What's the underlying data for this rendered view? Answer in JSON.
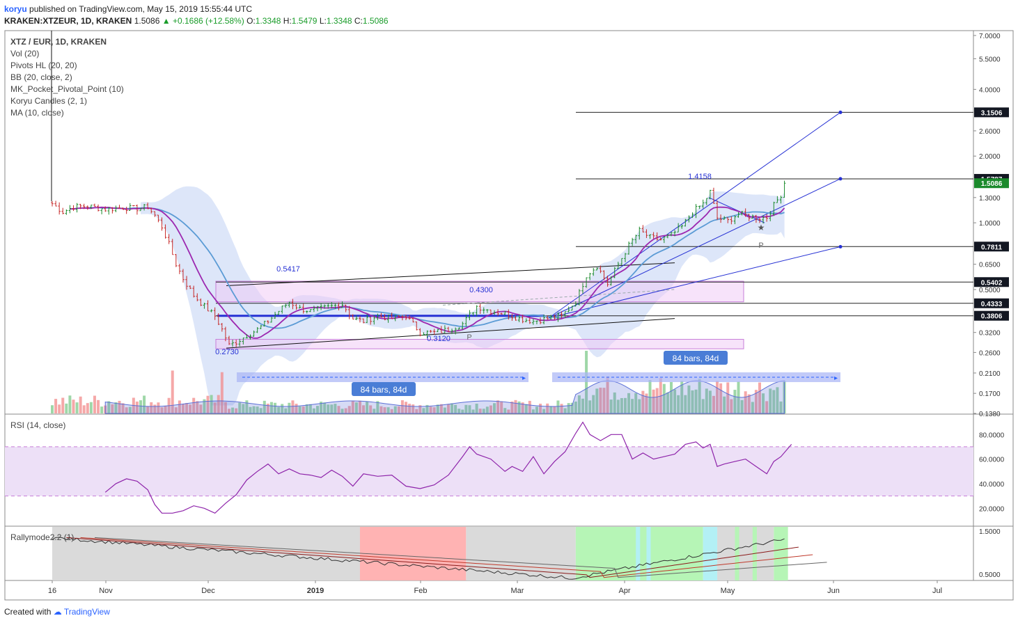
{
  "header": {
    "author": "koryu",
    "published": "published on TradingView.com, May 15, 2019 15:55:44 UTC",
    "symbol": "KRAKEN:XTZEUR, 1D, KRAKEN",
    "last": "1.5086",
    "change": "+0.1686 (+12.58%)",
    "o_label": "O:",
    "o": "1.3348",
    "h_label": "H:",
    "h": "1.5479",
    "l_label": "L:",
    "l": "1.3348",
    "c_label": "C:",
    "c": "1.5086"
  },
  "legend": [
    "XTZ / EUR, 1D, KRAKEN",
    "Vol (20)",
    "Pivots HL (20, 20)",
    "BB (20, close, 2)",
    "MK_Pocket_Pivotal_Point (10)",
    "Koryu Candles (2, 1)",
    "MA (10, close)"
  ],
  "colors": {
    "up": "#26a69a",
    "down": "#ef5350",
    "ma": "#9c27b0",
    "bb": "#5b9bd5",
    "bbfill": "#cfdcf7",
    "band": "#f0c8f5",
    "trend": "#2631d4",
    "rsi": "#8e24aa",
    "rsiband": "#ede0f7",
    "rally_gray": "#dadada",
    "rally_red": "#ffb3b3",
    "rally_green": "#b6f5b6",
    "rally_cyan": "#b3f0f5"
  },
  "footer": {
    "created": "Created with",
    "brand": "TradingView"
  },
  "chart_data": [
    {
      "type": "candlestick",
      "title": "XTZ / EUR, 1D, KRAKEN",
      "scale": "log",
      "ylim": [
        0.138,
        7.0
      ],
      "y_ticks": [
        "7.0000",
        "5.5000",
        "4.0000",
        "3.1506",
        "2.6000",
        "2.0000",
        "1.5787",
        "1.5086",
        "1.3000",
        "1.0000",
        "0.7811",
        "0.6500",
        "0.5402",
        "0.5000",
        "0.4333",
        "0.3806",
        "0.3200",
        "0.2600",
        "0.2100",
        "0.1700",
        "0.1380"
      ],
      "x_ticks": [
        "16",
        "Nov",
        "Dec",
        "2019",
        "Feb",
        "Mar",
        "Apr",
        "May",
        "Jun",
        "Jul"
      ],
      "horizontal_levels": [
        {
          "label": "3.1506",
          "value": 3.1506
        },
        {
          "label": "1.5787",
          "value": 1.5787
        },
        {
          "label": "0.7811",
          "value": 0.7811
        },
        {
          "label": "0.5402",
          "value": 0.5402
        },
        {
          "label": "0.4333",
          "value": 0.4333
        },
        {
          "label": "0.3806",
          "value": 0.3806
        }
      ],
      "last_price": {
        "label": "1.5086",
        "value": 1.5086
      },
      "annotations": [
        {
          "text": "0.5417",
          "value": 0.5417
        },
        {
          "text": "0.4300",
          "value": 0.43
        },
        {
          "text": "0.3120",
          "value": 0.312
        },
        {
          "text": "0.2730",
          "value": 0.273
        },
        {
          "text": "1.4158",
          "value": 1.4158
        },
        {
          "text": "P",
          "value": 0.3
        },
        {
          "text": "P",
          "value": 0.86
        }
      ],
      "ranges": [
        {
          "text": "84 bars, 84d",
          "placement": "bottom-left"
        },
        {
          "text": "84 bars, 84d",
          "placement": "top-right"
        }
      ],
      "close_path": [
        [
          0,
          1.22
        ],
        [
          3,
          1.12
        ],
        [
          6,
          1.18
        ],
        [
          10,
          1.19
        ],
        [
          15,
          1.15
        ],
        [
          20,
          1.17
        ],
        [
          24,
          1.16
        ],
        [
          27,
          1.18
        ],
        [
          29,
          1.08
        ],
        [
          31,
          0.96
        ],
        [
          33,
          0.8
        ],
        [
          35,
          0.65
        ],
        [
          37,
          0.56
        ],
        [
          40,
          0.47
        ],
        [
          43,
          0.42
        ],
        [
          46,
          0.38
        ],
        [
          48,
          0.33
        ],
        [
          50,
          0.28
        ],
        [
          52,
          0.29
        ],
        [
          55,
          0.31
        ],
        [
          58,
          0.33
        ],
        [
          61,
          0.36
        ],
        [
          64,
          0.4
        ],
        [
          67,
          0.44
        ],
        [
          70,
          0.41
        ],
        [
          73,
          0.4
        ],
        [
          76,
          0.41
        ],
        [
          79,
          0.42
        ],
        [
          82,
          0.43
        ],
        [
          85,
          0.37
        ],
        [
          88,
          0.36
        ],
        [
          92,
          0.38
        ],
        [
          96,
          0.37
        ],
        [
          100,
          0.38
        ],
        [
          104,
          0.32
        ],
        [
          108,
          0.32
        ],
        [
          112,
          0.33
        ],
        [
          116,
          0.35
        ],
        [
          120,
          0.42
        ],
        [
          124,
          0.4
        ],
        [
          128,
          0.39
        ],
        [
          132,
          0.37
        ],
        [
          136,
          0.36
        ],
        [
          140,
          0.37
        ],
        [
          144,
          0.38
        ],
        [
          148,
          0.44
        ],
        [
          151,
          0.58
        ],
        [
          154,
          0.64
        ],
        [
          157,
          0.53
        ],
        [
          160,
          0.65
        ],
        [
          163,
          0.79
        ],
        [
          166,
          0.92
        ],
        [
          169,
          0.86
        ],
        [
          172,
          0.84
        ],
        [
          175,
          0.88
        ],
        [
          178,
          0.96
        ],
        [
          181,
          1.12
        ],
        [
          184,
          1.22
        ],
        [
          186,
          1.38
        ],
        [
          188,
          1.05
        ],
        [
          191,
          1.02
        ],
        [
          194,
          1.1
        ],
        [
          197,
          1.07
        ],
        [
          200,
          1.05
        ],
        [
          202,
          1.06
        ],
        [
          204,
          1.2
        ],
        [
          206,
          1.34
        ],
        [
          207,
          1.51
        ]
      ]
    },
    {
      "type": "line",
      "title": "RSI (14, close)",
      "ylim": [
        6,
        96
      ],
      "y_ticks": [
        "80.0000",
        "60.0000",
        "40.0000",
        "20.0000"
      ],
      "band": [
        30,
        70
      ],
      "values": [
        [
          15,
          33
        ],
        [
          18,
          40
        ],
        [
          21,
          44
        ],
        [
          24,
          42
        ],
        [
          27,
          35
        ],
        [
          29,
          23
        ],
        [
          31,
          16
        ],
        [
          34,
          16
        ],
        [
          37,
          18
        ],
        [
          40,
          22
        ],
        [
          43,
          20
        ],
        [
          46,
          16
        ],
        [
          49,
          24
        ],
        [
          52,
          31
        ],
        [
          55,
          43
        ],
        [
          58,
          50
        ],
        [
          61,
          56
        ],
        [
          64,
          48
        ],
        [
          67,
          52
        ],
        [
          70,
          48
        ],
        [
          73,
          47
        ],
        [
          76,
          45
        ],
        [
          79,
          51
        ],
        [
          82,
          46
        ],
        [
          85,
          38
        ],
        [
          88,
          48
        ],
        [
          92,
          46
        ],
        [
          96,
          47
        ],
        [
          100,
          38
        ],
        [
          104,
          36
        ],
        [
          108,
          39
        ],
        [
          112,
          47
        ],
        [
          116,
          62
        ],
        [
          118,
          70
        ],
        [
          120,
          64
        ],
        [
          124,
          60
        ],
        [
          128,
          50
        ],
        [
          130,
          54
        ],
        [
          133,
          50
        ],
        [
          136,
          62
        ],
        [
          139,
          48
        ],
        [
          142,
          58
        ],
        [
          145,
          66
        ],
        [
          148,
          81
        ],
        [
          150,
          90
        ],
        [
          152,
          80
        ],
        [
          155,
          75
        ],
        [
          158,
          80
        ],
        [
          161,
          80
        ],
        [
          164,
          60
        ],
        [
          167,
          65
        ],
        [
          170,
          60
        ],
        [
          173,
          62
        ],
        [
          176,
          64
        ],
        [
          179,
          72
        ],
        [
          182,
          74
        ],
        [
          184,
          69
        ],
        [
          186,
          72
        ],
        [
          188,
          54
        ],
        [
          190,
          56
        ],
        [
          193,
          58
        ],
        [
          196,
          60
        ],
        [
          199,
          54
        ],
        [
          202,
          48
        ],
        [
          204,
          58
        ],
        [
          206,
          62
        ],
        [
          209,
          72
        ]
      ]
    },
    {
      "type": "line",
      "title": "Rallymode2.2 (1)",
      "ylim": [
        0.35,
        1.6
      ],
      "y_ticks": [
        "1.5000",
        "0.5000"
      ],
      "zones": [
        "gray",
        "red",
        "gray",
        "green",
        "gray"
      ]
    }
  ]
}
